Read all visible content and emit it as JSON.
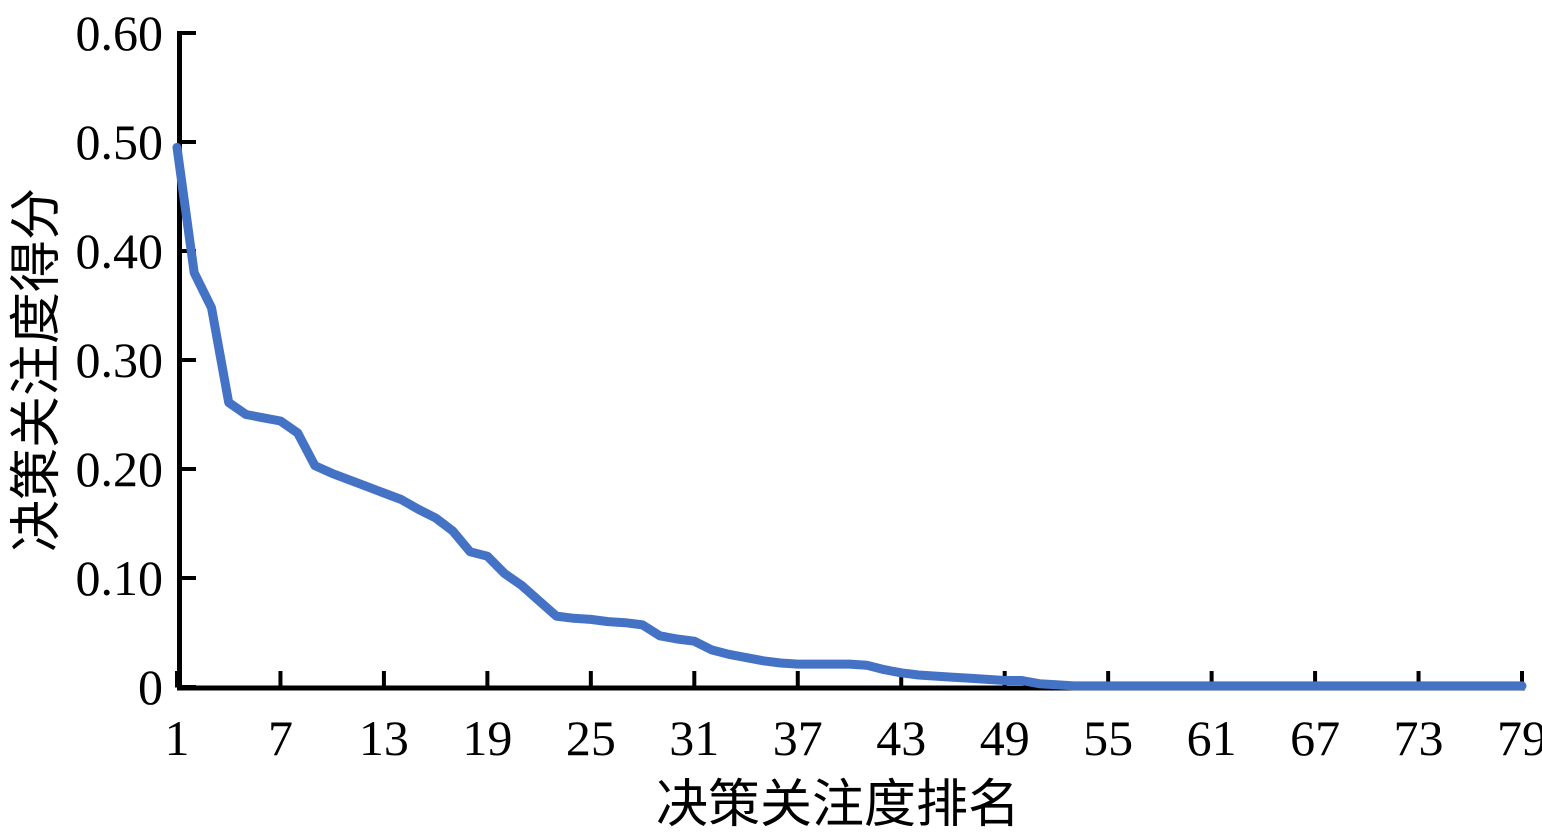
{
  "chart_data": {
    "type": "line",
    "title": "",
    "xlabel": "决策关注度排名",
    "ylabel": "决策关注度得分",
    "x": [
      1,
      2,
      3,
      4,
      5,
      6,
      7,
      8,
      9,
      10,
      11,
      12,
      13,
      14,
      15,
      16,
      17,
      18,
      19,
      20,
      21,
      22,
      23,
      24,
      25,
      26,
      27,
      28,
      29,
      30,
      31,
      32,
      33,
      34,
      35,
      36,
      37,
      38,
      39,
      40,
      41,
      42,
      43,
      44,
      45,
      46,
      47,
      48,
      49,
      50,
      51,
      52,
      53,
      54,
      55,
      56,
      57,
      58,
      59,
      60,
      61,
      62,
      63,
      64,
      65,
      66,
      67,
      68,
      69,
      70,
      71,
      72,
      73,
      74,
      75,
      76,
      77,
      78,
      79
    ],
    "values": [
      0.495,
      0.38,
      0.348,
      0.261,
      0.25,
      0.247,
      0.244,
      0.233,
      0.203,
      0.196,
      0.19,
      0.184,
      0.178,
      0.172,
      0.163,
      0.155,
      0.143,
      0.124,
      0.12,
      0.104,
      0.093,
      0.079,
      0.065,
      0.063,
      0.062,
      0.06,
      0.059,
      0.057,
      0.047,
      0.044,
      0.042,
      0.034,
      0.03,
      0.027,
      0.024,
      0.022,
      0.021,
      0.021,
      0.021,
      0.021,
      0.02,
      0.016,
      0.013,
      0.011,
      0.01,
      0.009,
      0.008,
      0.007,
      0.006,
      0.006,
      0.003,
      0.002,
      0.001,
      0.001,
      0.001,
      0.001,
      0.001,
      0.001,
      0.001,
      0.001,
      0.001,
      0.001,
      0.001,
      0.001,
      0.001,
      0.001,
      0.001,
      0.001,
      0.001,
      0.001,
      0.001,
      0.001,
      0.001,
      0.001,
      0.001,
      0.001,
      0.001,
      0.001,
      0.001
    ],
    "xticks": [
      1,
      7,
      13,
      19,
      25,
      31,
      37,
      43,
      49,
      55,
      61,
      67,
      73,
      79
    ],
    "yticks": [
      0,
      0.1,
      0.2,
      0.3,
      0.4,
      0.5,
      0.6
    ],
    "ytick_labels": [
      "0",
      "0.10",
      "0.20",
      "0.30",
      "0.40",
      "0.50",
      "0.60"
    ],
    "xlim": [
      1,
      79
    ],
    "ylim": [
      0,
      0.6
    ],
    "grid": false,
    "legend": "none",
    "line_color": "#4472C4",
    "axis_color": "#000000",
    "background": "#FFFFFF"
  }
}
